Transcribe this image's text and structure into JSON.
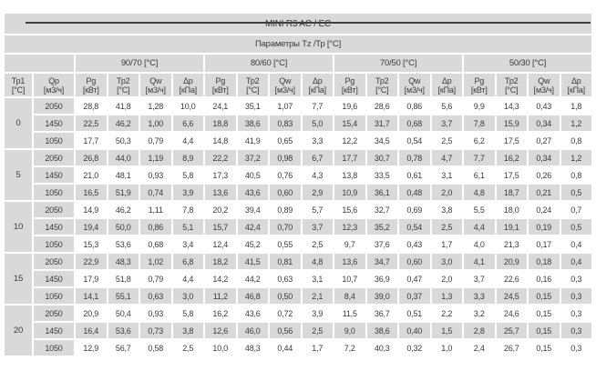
{
  "colors": {
    "cell_gray": "#d9d9d9",
    "row_white": "#ffffff",
    "text": "#3b3b3b",
    "top_rule": "#3d4043"
  },
  "table": {
    "title": "MINI R3 AC / EC",
    "subtitle": "Параметры Tz /Тр [°C]",
    "corner": {
      "tr1": {
        "label": "Тр1",
        "unit": "[°C]"
      },
      "qp": {
        "label": "Qp",
        "unit": "[м3/ч]"
      }
    },
    "regimes": [
      "90/70 [°C]",
      "80/60 [°C]",
      "70/50 [°C]",
      "50/30 [°C]"
    ],
    "columns": [
      {
        "label": "Pg",
        "unit": "[кВт]"
      },
      {
        "label": "Тр2",
        "unit": "[°C]"
      },
      {
        "label": "Qw",
        "unit": "[м3/ч]"
      },
      {
        "label": "Δp",
        "unit": "[кПа]"
      }
    ],
    "groups": [
      {
        "tr1": "0",
        "rows": [
          {
            "qp": "2050",
            "values": [
              "28,8",
              "41,8",
              "1,28",
              "10,0",
              "24,1",
              "35,1",
              "1,07",
              "7,7",
              "19,6",
              "28,6",
              "0,86",
              "5,6",
              "9,9",
              "14,3",
              "0,43",
              "1,8"
            ]
          },
          {
            "qp": "1450",
            "values": [
              "22,5",
              "46,2",
              "1,00",
              "6,6",
              "18,8",
              "38,6",
              "0,83",
              "5,0",
              "15,4",
              "31,7",
              "0,68",
              "3,7",
              "7,8",
              "15,9",
              "0,34",
              "1,2"
            ]
          },
          {
            "qp": "1050",
            "values": [
              "17,7",
              "50,3",
              "0,79",
              "4,4",
              "14,8",
              "41,9",
              "0,65",
              "3,3",
              "12,2",
              "34,5",
              "0,54",
              "2,5",
              "6,2",
              "17,5",
              "0,27",
              "0,8"
            ]
          }
        ]
      },
      {
        "tr1": "5",
        "rows": [
          {
            "qp": "2050",
            "values": [
              "26,8",
              "44,0",
              "1,19",
              "8,9",
              "22,2",
              "37,2",
              "0,98",
              "6,7",
              "17,7",
              "30,7",
              "0,78",
              "4,7",
              "7,7",
              "16,2",
              "0,34",
              "1,2"
            ]
          },
          {
            "qp": "1450",
            "values": [
              "21,0",
              "48,1",
              "0,93",
              "5,8",
              "17,3",
              "40,5",
              "0,76",
              "4,3",
              "13,8",
              "33,5",
              "0,61",
              "3,1",
              "6,1",
              "17,5",
              "0,26",
              "0,8"
            ]
          },
          {
            "qp": "1050",
            "values": [
              "16,5",
              "51,9",
              "0,74",
              "3,9",
              "13,6",
              "43,6",
              "0,60",
              "2,9",
              "10,9",
              "36,1",
              "0,48",
              "2,0",
              "4,8",
              "18,7",
              "0,21",
              "0,5"
            ]
          }
        ]
      },
      {
        "tr1": "10",
        "rows": [
          {
            "qp": "2050",
            "values": [
              "14,9",
              "46,2",
              "1,11",
              "7,8",
              "20,2",
              "39,4",
              "0,89",
              "5,7",
              "15,6",
              "32,7",
              "0,69",
              "3,8",
              "5,5",
              "18,0",
              "0,24",
              "0,7"
            ]
          },
          {
            "qp": "1450",
            "values": [
              "19,4",
              "50,0",
              "0,86",
              "5,1",
              "15,7",
              "42,4",
              "0,70",
              "3,7",
              "12,3",
              "35,2",
              "0,54",
              "2,5",
              "4,4",
              "19,1",
              "0,19",
              "0,5"
            ]
          },
          {
            "qp": "1050",
            "values": [
              "15,3",
              "53,6",
              "0,68",
              "3,4",
              "12,4",
              "45,2",
              "0,55",
              "2,5",
              "9,7",
              "37,6",
              "0,43",
              "1,7",
              "4,0",
              "21,3",
              "0,17",
              "0,4"
            ]
          }
        ]
      },
      {
        "tr1": "15",
        "rows": [
          {
            "qp": "2050",
            "values": [
              "22,9",
              "48,3",
              "1,02",
              "6,8",
              "18,2",
              "41,5",
              "0,81",
              "4,8",
              "13,6",
              "34,7",
              "0,60",
              "3,0",
              "4,1",
              "20,9",
              "0,18",
              "0,4"
            ]
          },
          {
            "qp": "1450",
            "values": [
              "17,9",
              "51,8",
              "0,79",
              "4,4",
              "14,2",
              "44,2",
              "0,63",
              "3,1",
              "10,7",
              "36,9",
              "0,47",
              "2,0",
              "3,7",
              "22,6",
              "0,16",
              "0,3"
            ]
          },
          {
            "qp": "1050",
            "values": [
              "14,1",
              "55,1",
              "0,63",
              "3,0",
              "11,2",
              "46,8",
              "0,50",
              "2,1",
              "8,4",
              "39,0",
              "0,37",
              "1,3",
              "3,3",
              "24,5",
              "0,15",
              "0,3"
            ]
          }
        ]
      },
      {
        "tr1": "20",
        "rows": [
          {
            "qp": "2050",
            "values": [
              "20,9",
              "50,4",
              "0,93",
              "5,8",
              "16,2",
              "43,6",
              "0,72",
              "3,9",
              "11,5",
              "36,7",
              "0,51",
              "2,2",
              "3,2",
              "24,6",
              "0,15",
              "0,3"
            ]
          },
          {
            "qp": "1450",
            "values": [
              "16,4",
              "53,6",
              "0,73",
              "3,8",
              "12,6",
              "46,0",
              "0,56",
              "2,5",
              "9,0",
              "38,6",
              "0,40",
              "1,5",
              "2,8",
              "25,7",
              "0,15",
              "0,3"
            ]
          },
          {
            "qp": "1050",
            "values": [
              "12,9",
              "56,7",
              "0,58",
              "2,5",
              "10,0",
              "48,3",
              "0,44",
              "1,7",
              "7,2",
              "40,3",
              "0,32",
              "1,0",
              "2,4",
              "26,7",
              "0,15",
              "0,3"
            ]
          }
        ]
      }
    ]
  }
}
